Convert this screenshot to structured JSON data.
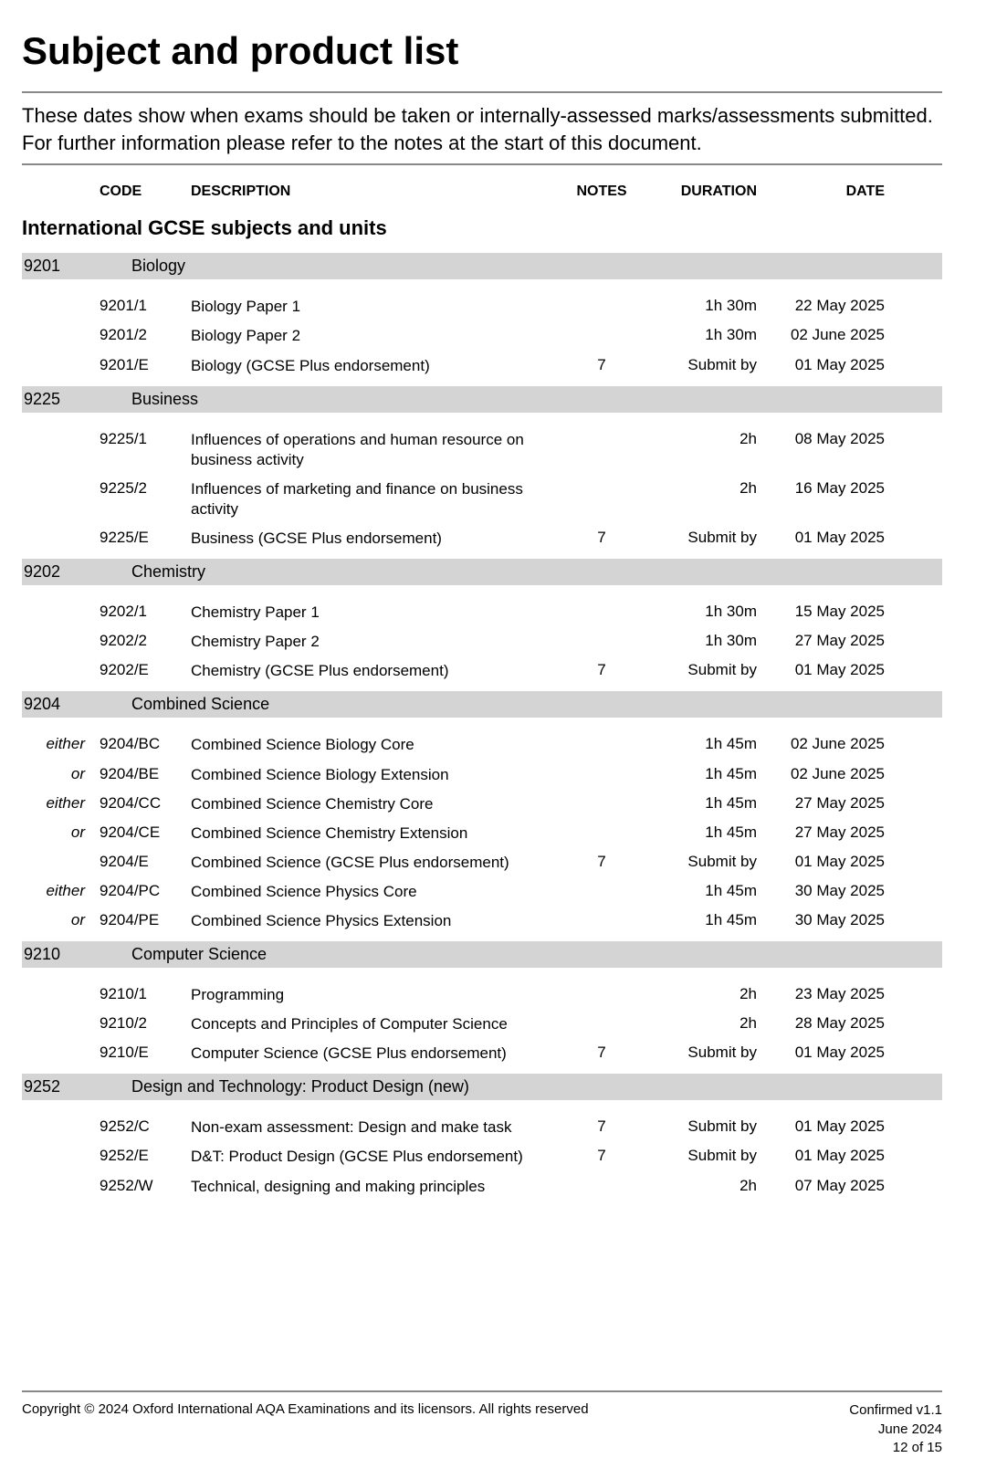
{
  "title": "Subject and product list",
  "intro": "These dates show when exams should be taken or internally-assessed marks/assessments submitted.  For further information please refer to the notes at the start of this document.",
  "headers": {
    "code": "CODE",
    "description": "DESCRIPTION",
    "notes": "NOTES",
    "duration": "DURATION",
    "date": "DATE"
  },
  "section_title": "International GCSE subjects and units",
  "subjects": [
    {
      "code": "9201",
      "name": "Biology",
      "units": [
        {
          "prefix": "",
          "code": "9201/1",
          "desc": "Biology Paper 1",
          "notes": "",
          "duration": "1h 30m",
          "date": "22 May 2025"
        },
        {
          "prefix": "",
          "code": "9201/2",
          "desc": "Biology Paper 2",
          "notes": "",
          "duration": "1h 30m",
          "date": "02 June 2025"
        },
        {
          "prefix": "",
          "code": "9201/E",
          "desc": "Biology (GCSE Plus endorsement)",
          "notes": "7",
          "duration": "Submit by",
          "date": "01 May 2025"
        }
      ]
    },
    {
      "code": "9225",
      "name": "Business",
      "units": [
        {
          "prefix": "",
          "code": "9225/1",
          "desc": "Influences of operations and human resource on business activity",
          "notes": "",
          "duration": "2h",
          "date": "08 May 2025"
        },
        {
          "prefix": "",
          "code": "9225/2",
          "desc": "Influences of marketing and finance on business activity",
          "notes": "",
          "duration": "2h",
          "date": "16 May 2025"
        },
        {
          "prefix": "",
          "code": "9225/E",
          "desc": "Business (GCSE Plus endorsement)",
          "notes": "7",
          "duration": "Submit by",
          "date": "01 May 2025"
        }
      ]
    },
    {
      "code": "9202",
      "name": "Chemistry",
      "units": [
        {
          "prefix": "",
          "code": "9202/1",
          "desc": "Chemistry Paper 1",
          "notes": "",
          "duration": "1h 30m",
          "date": "15 May 2025"
        },
        {
          "prefix": "",
          "code": "9202/2",
          "desc": "Chemistry Paper 2",
          "notes": "",
          "duration": "1h 30m",
          "date": "27 May 2025"
        },
        {
          "prefix": "",
          "code": "9202/E",
          "desc": "Chemistry (GCSE Plus endorsement)",
          "notes": "7",
          "duration": "Submit by",
          "date": "01 May 2025"
        }
      ]
    },
    {
      "code": "9204",
      "name": "Combined Science",
      "units": [
        {
          "prefix": "either",
          "code": "9204/BC",
          "desc": "Combined Science Biology Core",
          "notes": "",
          "duration": "1h 45m",
          "date": "02 June 2025"
        },
        {
          "prefix": "or",
          "code": "9204/BE",
          "desc": "Combined Science Biology Extension",
          "notes": "",
          "duration": "1h 45m",
          "date": "02 June 2025"
        },
        {
          "prefix": "either",
          "code": "9204/CC",
          "desc": "Combined Science Chemistry Core",
          "notes": "",
          "duration": "1h 45m",
          "date": "27 May 2025"
        },
        {
          "prefix": "or",
          "code": "9204/CE",
          "desc": "Combined Science Chemistry Extension",
          "notes": "",
          "duration": "1h 45m",
          "date": "27 May 2025"
        },
        {
          "prefix": "",
          "code": "9204/E",
          "desc": "Combined Science (GCSE Plus endorsement)",
          "notes": "7",
          "duration": "Submit by",
          "date": "01 May 2025"
        },
        {
          "prefix": "either",
          "code": "9204/PC",
          "desc": "Combined Science Physics Core",
          "notes": "",
          "duration": "1h 45m",
          "date": "30 May 2025"
        },
        {
          "prefix": "or",
          "code": "9204/PE",
          "desc": "Combined Science Physics Extension",
          "notes": "",
          "duration": "1h 45m",
          "date": "30 May 2025"
        }
      ]
    },
    {
      "code": "9210",
      "name": "Computer Science",
      "units": [
        {
          "prefix": "",
          "code": "9210/1",
          "desc": "Programming",
          "notes": "",
          "duration": "2h",
          "date": "23 May 2025"
        },
        {
          "prefix": "",
          "code": "9210/2",
          "desc": "Concepts and Principles of Computer Science",
          "notes": "",
          "duration": "2h",
          "date": "28 May 2025"
        },
        {
          "prefix": "",
          "code": "9210/E",
          "desc": "Computer Science (GCSE Plus endorsement)",
          "notes": "7",
          "duration": "Submit by",
          "date": "01 May 2025"
        }
      ]
    },
    {
      "code": "9252",
      "name": "Design and Technology: Product Design (new)",
      "units": [
        {
          "prefix": "",
          "code": "9252/C",
          "desc": "Non-exam assessment: Design and make task",
          "notes": "7",
          "duration": "Submit by",
          "date": "01 May 2025"
        },
        {
          "prefix": "",
          "code": "9252/E",
          "desc": "D&T: Product Design (GCSE Plus endorsement)",
          "notes": "7",
          "duration": "Submit by",
          "date": "01 May 2025"
        },
        {
          "prefix": "",
          "code": "9252/W",
          "desc": "Technical, designing and making principles",
          "notes": "",
          "duration": "2h",
          "date": "07 May 2025"
        }
      ]
    }
  ],
  "footer": {
    "copyright": "Copyright © 2024 Oxford International AQA Examinations and its licensors. All rights reserved",
    "confirmed": "Confirmed v1.1",
    "issued": "June 2024",
    "page": "12 of 15"
  }
}
